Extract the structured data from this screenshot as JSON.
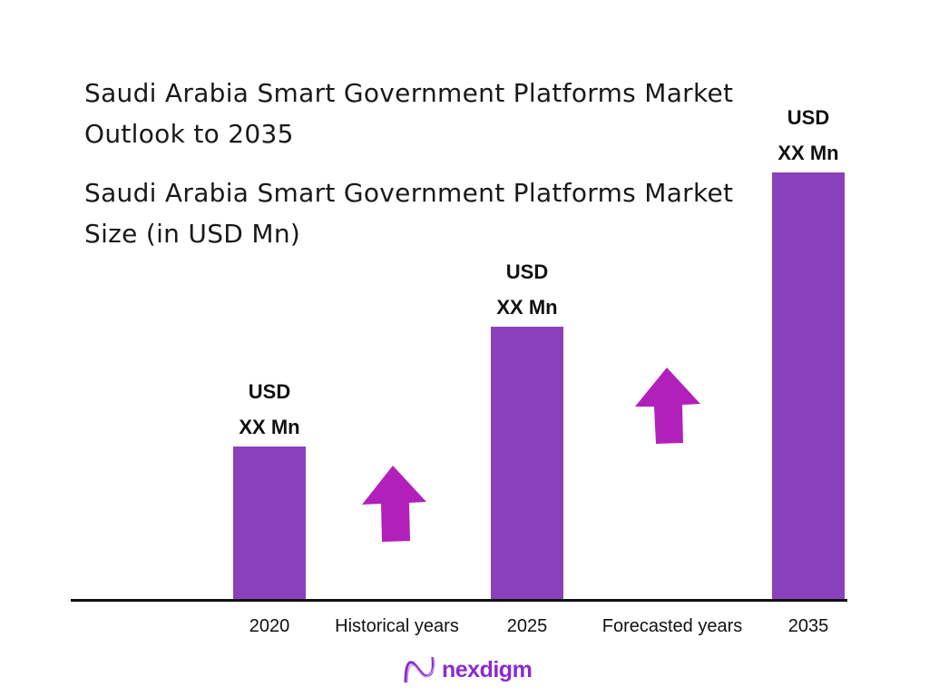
{
  "title": "Saudi Arabia Smart Government Platforms Market Outlook to 2035",
  "subtitle": "Saudi Arabia Smart Government Platforms Market Size (in USD Mn)",
  "colors": {
    "bar": "#8b41bb",
    "arrow": "#b220bb",
    "logo": "#8a2bd0"
  },
  "chart_data": {
    "type": "bar",
    "title": "Saudi Arabia Smart Government Platforms Market Size (in USD Mn)",
    "categories": [
      "2020",
      "2025",
      "2035"
    ],
    "relative_values": [
      36,
      64,
      100
    ],
    "data_labels": [
      [
        "USD",
        "XX Mn"
      ],
      [
        "USD",
        "XX Mn"
      ],
      [
        "USD",
        "XX Mn"
      ]
    ],
    "period_labels": [
      "Historical years",
      "Forecasted years"
    ],
    "grid": false,
    "legend": "none"
  },
  "arrows": [
    {
      "icon": "arrow-up-icon"
    },
    {
      "icon": "arrow-up-icon"
    }
  ],
  "logo": {
    "text": "nexdigm"
  }
}
